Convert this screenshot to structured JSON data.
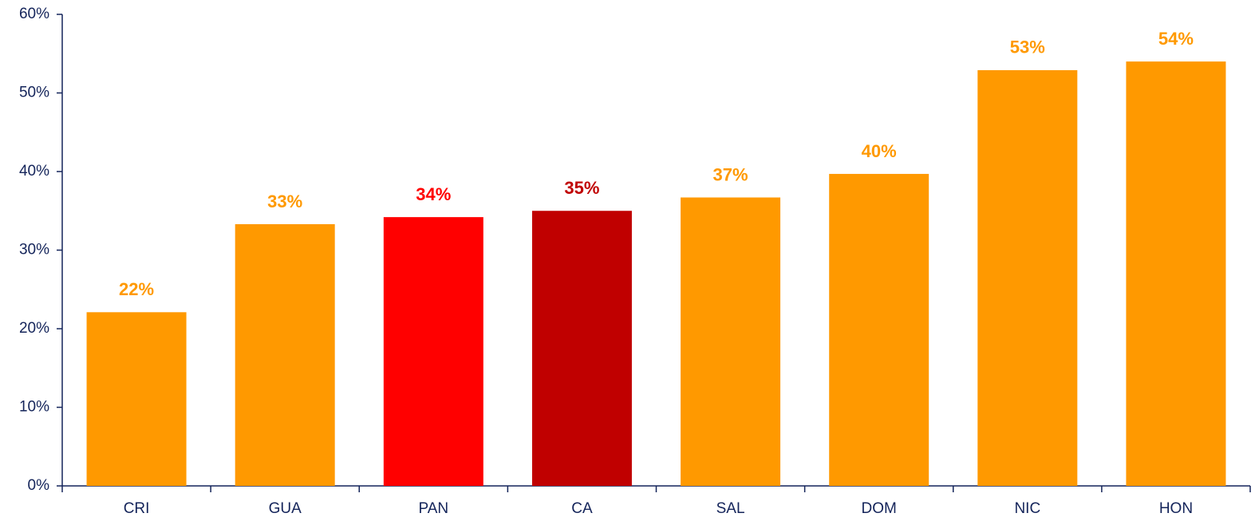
{
  "chart_data": {
    "type": "bar",
    "categories": [
      "CRI",
      "GUA",
      "PAN",
      "CA",
      "SAL",
      "DOM",
      "NIC",
      "HON"
    ],
    "values": [
      22.1,
      33.3,
      34.2,
      35.0,
      36.7,
      39.7,
      52.9,
      54.0
    ],
    "value_labels": [
      "22%",
      "33%",
      "34%",
      "35%",
      "37%",
      "40%",
      "53%",
      "54%"
    ],
    "colors": [
      "#FF9900",
      "#FF9900",
      "#FF0000",
      "#C00000",
      "#FF9900",
      "#FF9900",
      "#FF9900",
      "#FF9900"
    ],
    "ylim": [
      0,
      60
    ],
    "yticks": [
      {
        "value": 0,
        "label": "0%"
      },
      {
        "value": 10,
        "label": "10%"
      },
      {
        "value": 20,
        "label": "20%"
      },
      {
        "value": 30,
        "label": "30%"
      },
      {
        "value": 40,
        "label": "40%"
      },
      {
        "value": 50,
        "label": "50%"
      },
      {
        "value": 60,
        "label": "60%"
      }
    ],
    "grid": false
  }
}
